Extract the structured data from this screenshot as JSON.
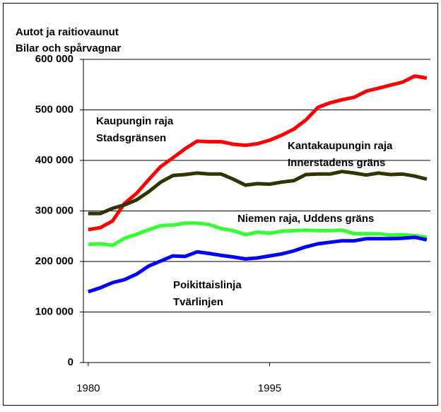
{
  "chart_data": {
    "type": "line",
    "title_lines": [
      "Autot ja raitiovaunut",
      "Bilar och spårvagnar"
    ],
    "x": [
      1980,
      1981,
      1982,
      1983,
      1984,
      1985,
      1986,
      1987,
      1988,
      1989,
      1990,
      1991,
      1992,
      1993,
      1994,
      1995,
      1996,
      1997,
      1998,
      1999,
      2000,
      2001,
      2002,
      2003,
      2004,
      2005,
      2006,
      2007,
      2008
    ],
    "xlim": [
      1979.6,
      2008.3
    ],
    "xticks": [
      1980,
      1995
    ],
    "ylim": [
      0,
      600000
    ],
    "yticks": [
      {
        "value": 0,
        "label": "0"
      },
      {
        "value": 100000,
        "label": "100 000"
      },
      {
        "value": 200000,
        "label": "200 000"
      },
      {
        "value": 300000,
        "label": "300 000"
      },
      {
        "value": 400000,
        "label": "400 000"
      },
      {
        "value": 500000,
        "label": "500 000"
      },
      {
        "value": 600000,
        "label": "600 000"
      }
    ],
    "grid": true,
    "series": [
      {
        "label_lines": [
          "Kaupungin raja",
          "Stadsgränsen"
        ],
        "color": "#ff0000",
        "values": [
          263000,
          267000,
          280000,
          315000,
          335000,
          362000,
          388000,
          405000,
          423000,
          438000,
          437000,
          437000,
          432000,
          430000,
          433000,
          440000,
          450000,
          462000,
          480000,
          505000,
          514000,
          520000,
          525000,
          537000,
          543000,
          549000,
          555000,
          567000,
          563000
        ]
      },
      {
        "label_lines": [
          "Kantakaupungin raja",
          "Innerstadens gräns"
        ],
        "color": "#333300",
        "values": [
          295000,
          295000,
          305000,
          312000,
          322000,
          338000,
          357000,
          370000,
          372000,
          375000,
          373000,
          373000,
          363000,
          351000,
          354000,
          353000,
          357000,
          360000,
          372000,
          373000,
          373000,
          378000,
          375000,
          371000,
          375000,
          372000,
          373000,
          369000,
          363000
        ]
      },
      {
        "label_lines": [
          "Niemen raja, Uddens gräns"
        ],
        "color": "#33ff33",
        "values": [
          234000,
          235000,
          232000,
          246000,
          254000,
          263000,
          271000,
          272000,
          276000,
          276000,
          273000,
          265000,
          261000,
          253000,
          258000,
          256000,
          260000,
          261000,
          262000,
          261000,
          261000,
          262000,
          255000,
          255000,
          255000,
          252000,
          253000,
          251000,
          248000
        ]
      },
      {
        "label_lines": [
          "Poikittaislinja",
          "Tvärlinjen"
        ],
        "color": "#0000ff",
        "values": [
          140000,
          148000,
          158000,
          164000,
          175000,
          191000,
          201000,
          211000,
          210000,
          219000,
          216000,
          212000,
          209000,
          205000,
          207000,
          211000,
          215000,
          221000,
          229000,
          235000,
          238000,
          241000,
          241000,
          245000,
          245000,
          245000,
          246000,
          248000,
          243000
        ]
      }
    ]
  }
}
